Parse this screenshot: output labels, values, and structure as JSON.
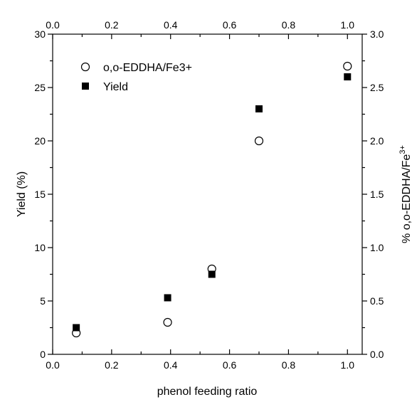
{
  "chart_data": {
    "type": "scatter",
    "title": "",
    "xlabel": "phenol feeding ratio",
    "ylabel_left": "Yield (%)",
    "ylabel_right": "% o,o-EDDHA/Fe",
    "ylabel_right_superscript": "3+",
    "xlim": [
      0.0,
      1.05
    ],
    "ylim_left": [
      0,
      30
    ],
    "ylim_right": [
      0.0,
      3.0
    ],
    "x_ticks": [
      "0.0",
      "0.2",
      "0.4",
      "0.6",
      "0.8",
      "1.0"
    ],
    "x_tick_values": [
      0.0,
      0.2,
      0.4,
      0.6,
      0.8,
      1.0
    ],
    "y_left_ticks": [
      "0",
      "5",
      "10",
      "15",
      "20",
      "25",
      "30"
    ],
    "y_left_tick_values": [
      0,
      5,
      10,
      15,
      20,
      25,
      30
    ],
    "y_right_ticks": [
      "0.0",
      "0.5",
      "1.0",
      "1.5",
      "2.0",
      "2.5",
      "3.0"
    ],
    "y_right_tick_values": [
      0.0,
      0.5,
      1.0,
      1.5,
      2.0,
      2.5,
      3.0
    ],
    "grid": false,
    "legend_position": "top-left",
    "series": [
      {
        "name": "o,o-EDDHA/Fe3+",
        "marker": "open-circle",
        "axis": "right",
        "x": [
          0.08,
          0.39,
          0.54,
          0.7,
          1.0
        ],
        "y": [
          0.2,
          0.3,
          0.8,
          2.0,
          2.7
        ]
      },
      {
        "name": "Yield",
        "marker": "filled-square",
        "axis": "left",
        "x": [
          0.08,
          0.39,
          0.54,
          0.7,
          1.0
        ],
        "y": [
          2.5,
          5.3,
          7.5,
          23.0,
          26.0
        ]
      }
    ]
  }
}
